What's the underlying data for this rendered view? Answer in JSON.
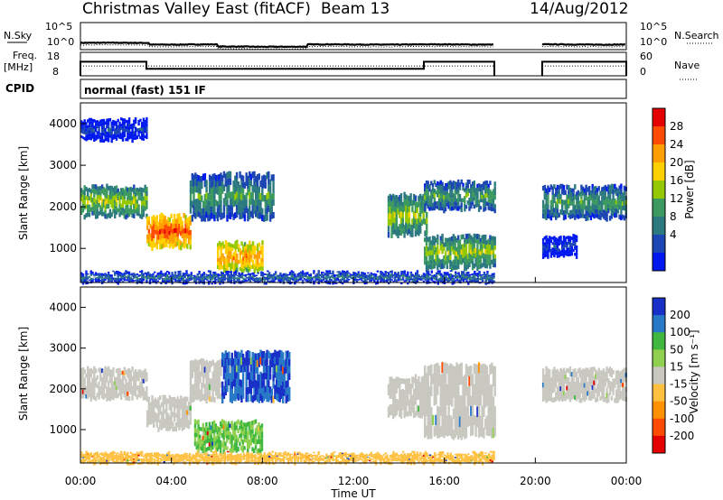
{
  "header": {
    "station_title": "Christmas Valley East (fitACF)",
    "beam_label": "Beam 13",
    "date": "14/Aug/2012"
  },
  "panels": {
    "noise": {
      "left_label": "N.Sky",
      "left_ticks": [
        "10^5",
        "10^0"
      ],
      "right_label": "N.Search",
      "right_ticks": [
        "10^5",
        "10^0"
      ]
    },
    "freq": {
      "left_label_lines": [
        "Freq.",
        "[MHz]"
      ],
      "left_ticks": [
        "18",
        "8"
      ],
      "right_label": "Nave",
      "right_ticks": [
        "60",
        "0"
      ]
    },
    "cpid": {
      "label": "CPID",
      "text": "normal (fast) 151 IF"
    },
    "power": {
      "ylabel": "Slant Range [km]",
      "y_ticks": [
        "4000",
        "3000",
        "2000",
        "1000"
      ],
      "cbar_label": "Power [dB]",
      "cbar_ticks": [
        "28",
        "24",
        "20",
        "16",
        "12",
        "8",
        "4"
      ],
      "cbar_colors": [
        "#e40000",
        "#ff4c00",
        "#ff9e00",
        "#ffd000",
        "#96c800",
        "#3c9a60",
        "#2c7a80",
        "#1c46b4",
        "#0018f0"
      ]
    },
    "velocity": {
      "ylabel": "Slant Range [km]",
      "y_ticks": [
        "4000",
        "3000",
        "2000",
        "1000"
      ],
      "cbar_label": "Velocity [m s⁻¹]",
      "cbar_ticks": [
        "200",
        "100",
        "50",
        "15",
        "-15",
        "-50",
        "-100",
        "-200"
      ],
      "cbar_colors": [
        "#1830c8",
        "#2878c8",
        "#40b840",
        "#90d050",
        "#c8c8c0",
        "#ffc040",
        "#ff9000",
        "#ff4c00",
        "#e40000"
      ]
    }
  },
  "xaxis": {
    "label": "Time UT",
    "ticks": [
      "00:00",
      "04:00",
      "08:00",
      "12:00",
      "16:00",
      "20:00",
      "00:00"
    ]
  },
  "chart_data": [
    {
      "type": "line",
      "series": [
        {
          "name": "N.Sky",
          "style": "solid"
        },
        {
          "name": "N.Search",
          "style": "dotted"
        }
      ],
      "x": [
        0,
        2,
        4,
        6,
        8,
        10,
        12,
        14,
        16,
        18.2,
        20,
        22,
        24
      ],
      "xlim": [
        0,
        24
      ],
      "ylim_log10": [
        0,
        5
      ],
      "gap_hours": [
        18.2,
        20.3
      ]
    },
    {
      "type": "line",
      "series": [
        {
          "name": "Freq.",
          "style": "solid",
          "segments": [
            [
              0,
              2.9,
              14
            ],
            [
              2.9,
              15.1,
              11
            ],
            [
              15.1,
              18.2,
              14
            ],
            [
              20.3,
              24,
              14
            ]
          ]
        },
        {
          "name": "Nave",
          "style": "dotted"
        }
      ],
      "ylim_freq": [
        8,
        18
      ],
      "ylim_nave": [
        0,
        60
      ]
    },
    {
      "type": "heatmap",
      "quantity": "power",
      "ylim": [
        180,
        4500
      ],
      "xlim": [
        0,
        24
      ],
      "regions": [
        {
          "t0": 0,
          "t1": 2.9,
          "r0": 1750,
          "r1": 2500,
          "level": 4
        },
        {
          "t0": 0,
          "t1": 2.9,
          "r0": 3600,
          "r1": 4100,
          "level": 1
        },
        {
          "t0": 2.9,
          "t1": 4.8,
          "r0": 1000,
          "r1": 1800,
          "level": 7
        },
        {
          "t0": 4.8,
          "t1": 8.5,
          "r0": 1700,
          "r1": 2800,
          "level": 3
        },
        {
          "t0": 6.0,
          "t1": 8.0,
          "r0": 450,
          "r1": 1150,
          "level": 6
        },
        {
          "t0": 13.5,
          "t1": 15.2,
          "r0": 1300,
          "r1": 2300,
          "level": 4
        },
        {
          "t0": 15.1,
          "t1": 18.2,
          "r0": 1900,
          "r1": 2600,
          "level": 3
        },
        {
          "t0": 15.1,
          "t1": 18.2,
          "r0": 500,
          "r1": 1300,
          "level": 4
        },
        {
          "t0": 20.3,
          "t1": 24,
          "r0": 1700,
          "r1": 2500,
          "level": 3
        },
        {
          "t0": 20.3,
          "t1": 21.8,
          "r0": 800,
          "r1": 1300,
          "level": 1
        },
        {
          "t0": 0,
          "t1": 18.2,
          "r0": 180,
          "r1": 420,
          "level": 2
        }
      ]
    },
    {
      "type": "heatmap",
      "quantity": "velocity",
      "ylim": [
        180,
        4500
      ],
      "xlim": [
        0,
        24
      ],
      "regions": [
        {
          "t0": 0,
          "t1": 2.9,
          "r0": 1750,
          "r1": 2500,
          "v": 0
        },
        {
          "t0": 2.9,
          "t1": 4.8,
          "r0": 1000,
          "r1": 1800,
          "v": 0
        },
        {
          "t0": 4.8,
          "t1": 6.2,
          "r0": 1700,
          "r1": 2700,
          "v": 0
        },
        {
          "t0": 6.2,
          "t1": 9.2,
          "r0": 1700,
          "r1": 2900,
          "v": 200
        },
        {
          "t0": 5.0,
          "t1": 8.0,
          "r0": 450,
          "r1": 1200,
          "v": 50
        },
        {
          "t0": 13.5,
          "t1": 15.2,
          "r0": 1300,
          "r1": 2300,
          "v": 0
        },
        {
          "t0": 15.1,
          "t1": 18.2,
          "r0": 800,
          "r1": 2600,
          "v": 0
        },
        {
          "t0": 20.3,
          "t1": 24,
          "r0": 1700,
          "r1": 2500,
          "v": 0
        },
        {
          "t0": 0,
          "t1": 18.2,
          "r0": 180,
          "r1": 420,
          "v": -30
        }
      ]
    }
  ]
}
